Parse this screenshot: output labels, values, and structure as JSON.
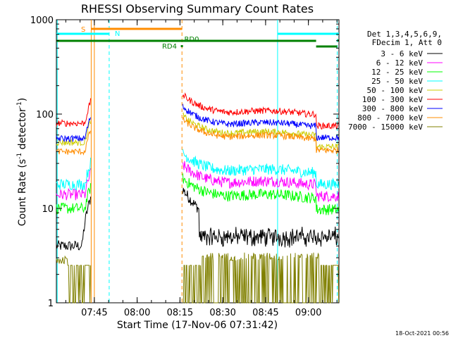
{
  "chart_data": {
    "type": "line",
    "title": "RHESSI Observing Summary Count Rates",
    "xlabel": "Start Time (17-Nov-06 07:31:42)",
    "ylabel_main": "Count Rate (s",
    "ylabel_sup1": "-1",
    "ylabel_mid": " detector",
    "ylabel_sup2": "-1",
    "ylabel_end": ")",
    "y_scale": "log",
    "ylim": [
      1,
      1000
    ],
    "xlim_minutes": [
      0,
      99
    ],
    "x_ticks": [
      {
        "label": "07:45",
        "t": 13.3
      },
      {
        "label": "08:00",
        "t": 28.3
      },
      {
        "label": "08:15",
        "t": 43.3
      },
      {
        "label": "08:30",
        "t": 58.3
      },
      {
        "label": "08:45",
        "t": 73.3
      },
      {
        "label": "09:00",
        "t": 88.3
      }
    ],
    "y_ticks": [
      {
        "label": "1",
        "v": 1
      },
      {
        "label": "10",
        "v": 10
      },
      {
        "label": "100",
        "v": 100
      },
      {
        "label": "1000",
        "v": 1000
      }
    ],
    "legend": {
      "header1": "Det 1,3,4,5,6,9,",
      "header2": "FDecim 1, Att 0",
      "position": "right"
    },
    "series": [
      {
        "name": "3 - 6 keV",
        "color": "#000000",
        "base": 4.5,
        "flare": 6.5
      },
      {
        "name": "6 - 12 keV",
        "color": "#ff00ff",
        "base": 14,
        "flare": 18
      },
      {
        "name": "12 - 25 keV",
        "color": "#00ff00",
        "base": 10,
        "flare": 13
      },
      {
        "name": "25 - 50 keV",
        "color": "#00ffff",
        "base": 18,
        "flare": 24
      },
      {
        "name": "50 - 100 keV",
        "color": "#cccc00",
        "base": 50,
        "flare": 60
      },
      {
        "name": "100 - 300 keV",
        "color": "#ff0000",
        "base": 80,
        "flare": 100
      },
      {
        "name": "300 - 800 keV",
        "color": "#0000ff",
        "base": 55,
        "flare": 75
      },
      {
        "name": "800 - 7000 keV",
        "color": "#ff8c00",
        "base": 40,
        "flare": 55
      },
      {
        "name": "7000 - 15000 keV",
        "color": "#808000",
        "base": 2,
        "flare": 2.5
      }
    ],
    "flags": {
      "S": {
        "label": "S",
        "color": "#ff8c00"
      },
      "N": {
        "label": "N",
        "color": "#00ffff"
      },
      "RD0": {
        "label": "RD0",
        "color": "#008000"
      },
      "RD4": {
        "label": "RD4",
        "color": "#008000"
      }
    },
    "marker_colors": {
      "saa": "#ff8c00",
      "night": "#00ffff"
    }
  },
  "footer": {
    "date": "18-Oct-2021 00:56"
  }
}
